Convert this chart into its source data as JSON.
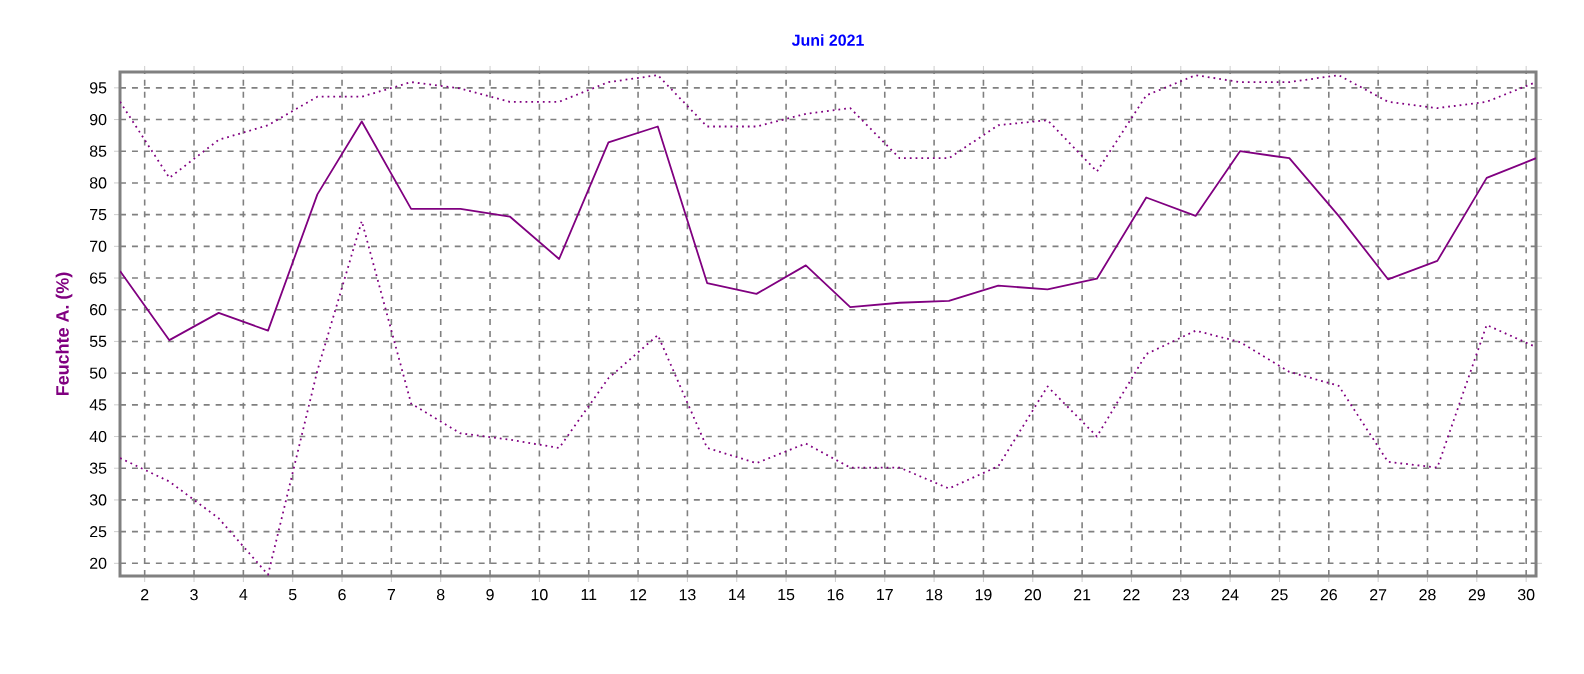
{
  "chart_data": {
    "type": "line",
    "title": "Juni 2021",
    "ylabel": "Feuchte A. (%)",
    "x": [
      1.5,
      2.5,
      3.5,
      4.5,
      5.5,
      6.4,
      7.4,
      8.4,
      9.4,
      10.4,
      11.4,
      12.4,
      13.4,
      14.4,
      15.4,
      16.3,
      17.3,
      18.3,
      19.3,
      20.3,
      21.3,
      22.3,
      23.3,
      24.2,
      25.2,
      26.2,
      27.2,
      28.2,
      29.2,
      30.2
    ],
    "series": [
      {
        "color": "#800080",
        "line_style": "dotted",
        "values": [
          92.8,
          80.8,
          86.8,
          89.1,
          93.6,
          93.6,
          95.9,
          94.9,
          92.8,
          92.8,
          95.9,
          97.0,
          88.9,
          88.9,
          90.9,
          91.8,
          83.9,
          83.9,
          89.1,
          89.9,
          81.8,
          93.8,
          97.0,
          95.9,
          95.9,
          97.0,
          92.8,
          91.8,
          92.8,
          95.9
        ]
      },
      {
        "color": "#800080",
        "line_style": "solid",
        "values": [
          66.1,
          55.2,
          59.5,
          56.7,
          78.2,
          89.7,
          75.9,
          75.9,
          74.7,
          68.0,
          86.4,
          88.9,
          64.2,
          62.5,
          67.0,
          60.4,
          61.1,
          61.4,
          63.8,
          63.2,
          64.9,
          77.7,
          74.8,
          85.0,
          83.9,
          74.8,
          64.8,
          67.7,
          80.8,
          83.9
        ]
      },
      {
        "color": "#800080",
        "line_style": "dotted",
        "values": [
          36.6,
          32.9,
          27.1,
          18.2,
          50.4,
          74.0,
          45.2,
          40.5,
          39.5,
          38.2,
          49.2,
          56.0,
          38.2,
          35.8,
          38.9,
          35.1,
          35.1,
          31.8,
          35.3,
          47.9,
          40.0,
          53.0,
          56.7,
          54.9,
          50.2,
          48.0,
          36.0,
          35.1,
          57.6,
          54.1
        ]
      }
    ],
    "xlim": [
      1.5,
      30.2
    ],
    "ylim": [
      18,
      97.5
    ],
    "xticks": [
      2,
      3,
      4,
      5,
      6,
      7,
      8,
      9,
      10,
      11,
      12,
      13,
      14,
      15,
      16,
      17,
      18,
      19,
      20,
      21,
      22,
      23,
      24,
      25,
      26,
      27,
      28,
      29,
      30
    ],
    "yticks": [
      20,
      25,
      30,
      35,
      40,
      45,
      50,
      55,
      60,
      65,
      70,
      75,
      80,
      85,
      90,
      95
    ],
    "grid": true
  }
}
